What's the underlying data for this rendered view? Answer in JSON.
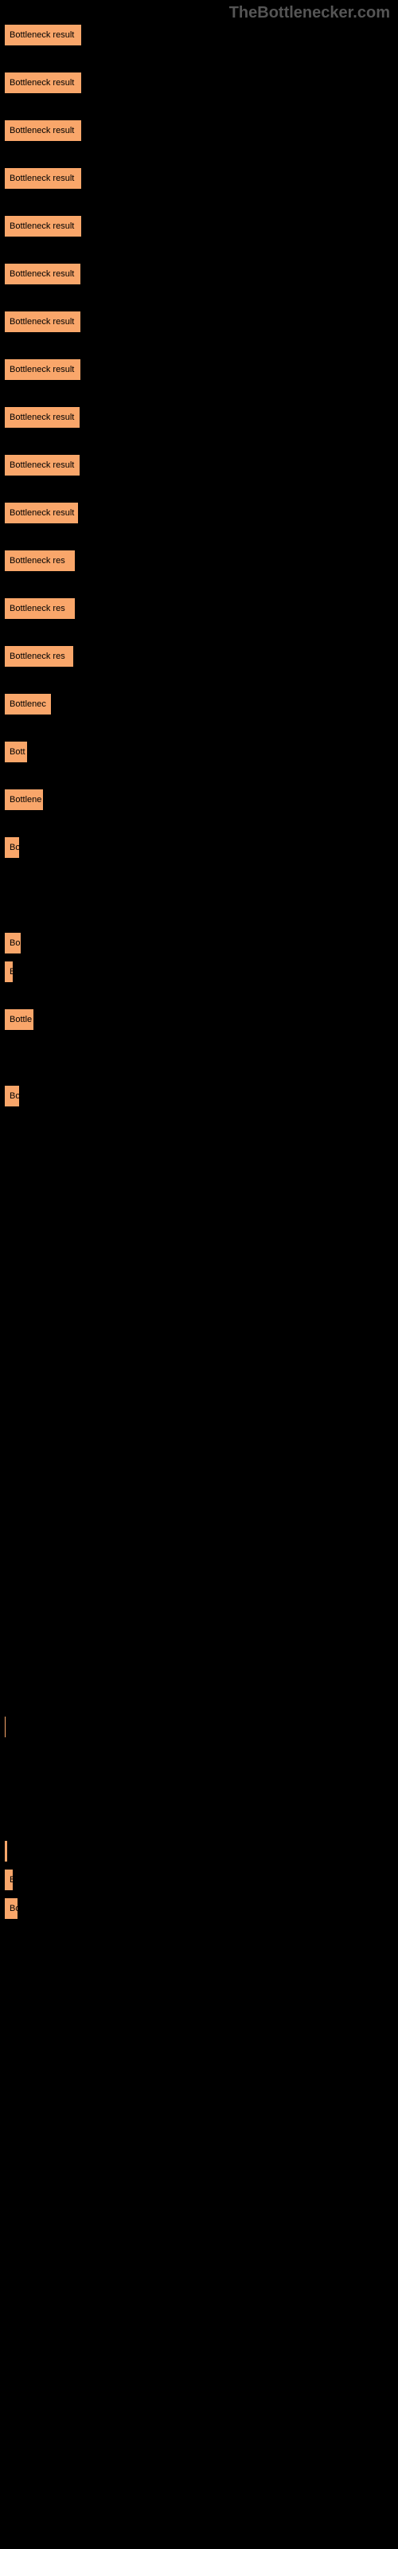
{
  "watermark": "TheBottlenecker.com",
  "chart": {
    "type": "bar",
    "orientation": "horizontal",
    "background_color": "#000000",
    "bar_color": "#f9a66a",
    "bar_border_color": "#000000",
    "label_color": "#000000",
    "label_fontsize": 11,
    "max_width": 100,
    "bars": [
      {
        "label": "Bottleneck result",
        "width": 98,
        "gap_after": true
      },
      {
        "label": "Bottleneck result",
        "width": 98,
        "gap_after": true
      },
      {
        "label": "Bottleneck result",
        "width": 98,
        "gap_after": true
      },
      {
        "label": "Bottleneck result",
        "width": 98,
        "gap_after": true
      },
      {
        "label": "Bottleneck result",
        "width": 98,
        "gap_after": true
      },
      {
        "label": "Bottleneck result",
        "width": 97,
        "gap_after": true
      },
      {
        "label": "Bottleneck result",
        "width": 97,
        "gap_after": true
      },
      {
        "label": "Bottleneck result",
        "width": 97,
        "gap_after": true
      },
      {
        "label": "Bottleneck result",
        "width": 96,
        "gap_after": true
      },
      {
        "label": "Bottleneck result",
        "width": 96,
        "gap_after": true
      },
      {
        "label": "Bottleneck result",
        "width": 94,
        "gap_after": true
      },
      {
        "label": "Bottleneck res",
        "width": 90,
        "gap_after": true
      },
      {
        "label": "Bottleneck res",
        "width": 90,
        "gap_after": true
      },
      {
        "label": "Bottleneck res",
        "width": 88,
        "gap_after": true
      },
      {
        "label": "Bottlenec",
        "width": 60,
        "gap_after": true
      },
      {
        "label": "Bott",
        "width": 30,
        "gap_after": true
      },
      {
        "label": "Bottlene",
        "width": 50,
        "gap_after": true
      },
      {
        "label": "Bo",
        "width": 20,
        "gap_after": true
      },
      {
        "label": "",
        "width": 0,
        "gap_after": true
      },
      {
        "label": "Bo",
        "width": 22,
        "gap_after": false
      },
      {
        "label": "B",
        "width": 12,
        "gap_after": true
      },
      {
        "label": "Bottle",
        "width": 38,
        "gap_after": true
      },
      {
        "label": "",
        "width": 0,
        "gap_after": false
      },
      {
        "label": "Bo",
        "width": 20,
        "gap_after": true
      },
      {
        "label": "",
        "width": 0,
        "gap_after": false
      },
      {
        "label": "",
        "width": 0,
        "gap_after": true
      },
      {
        "label": "",
        "width": 0,
        "gap_after": true
      },
      {
        "label": "",
        "width": 0,
        "gap_after": true
      },
      {
        "label": "",
        "width": 0,
        "gap_after": true
      },
      {
        "label": "",
        "width": 0,
        "gap_after": true
      },
      {
        "label": "",
        "width": 0,
        "gap_after": true
      },
      {
        "label": "",
        "width": 0,
        "gap_after": true
      },
      {
        "label": "",
        "width": 0,
        "gap_after": true
      },
      {
        "label": "",
        "width": 0,
        "gap_after": true
      },
      {
        "label": "",
        "width": 0,
        "gap_after": true
      },
      {
        "label": "",
        "width": 0,
        "gap_after": true
      },
      {
        "label": "",
        "width": 0,
        "gap_after": false
      },
      {
        "label": "",
        "width": 3,
        "gap_after": true
      },
      {
        "label": "",
        "width": 0,
        "gap_after": true
      },
      {
        "label": "",
        "width": 0,
        "gap_after": false
      },
      {
        "label": "",
        "width": 5,
        "gap_after": false
      },
      {
        "label": "B",
        "width": 12,
        "gap_after": false
      },
      {
        "label": "Bo",
        "width": 18,
        "gap_after": false
      }
    ]
  }
}
